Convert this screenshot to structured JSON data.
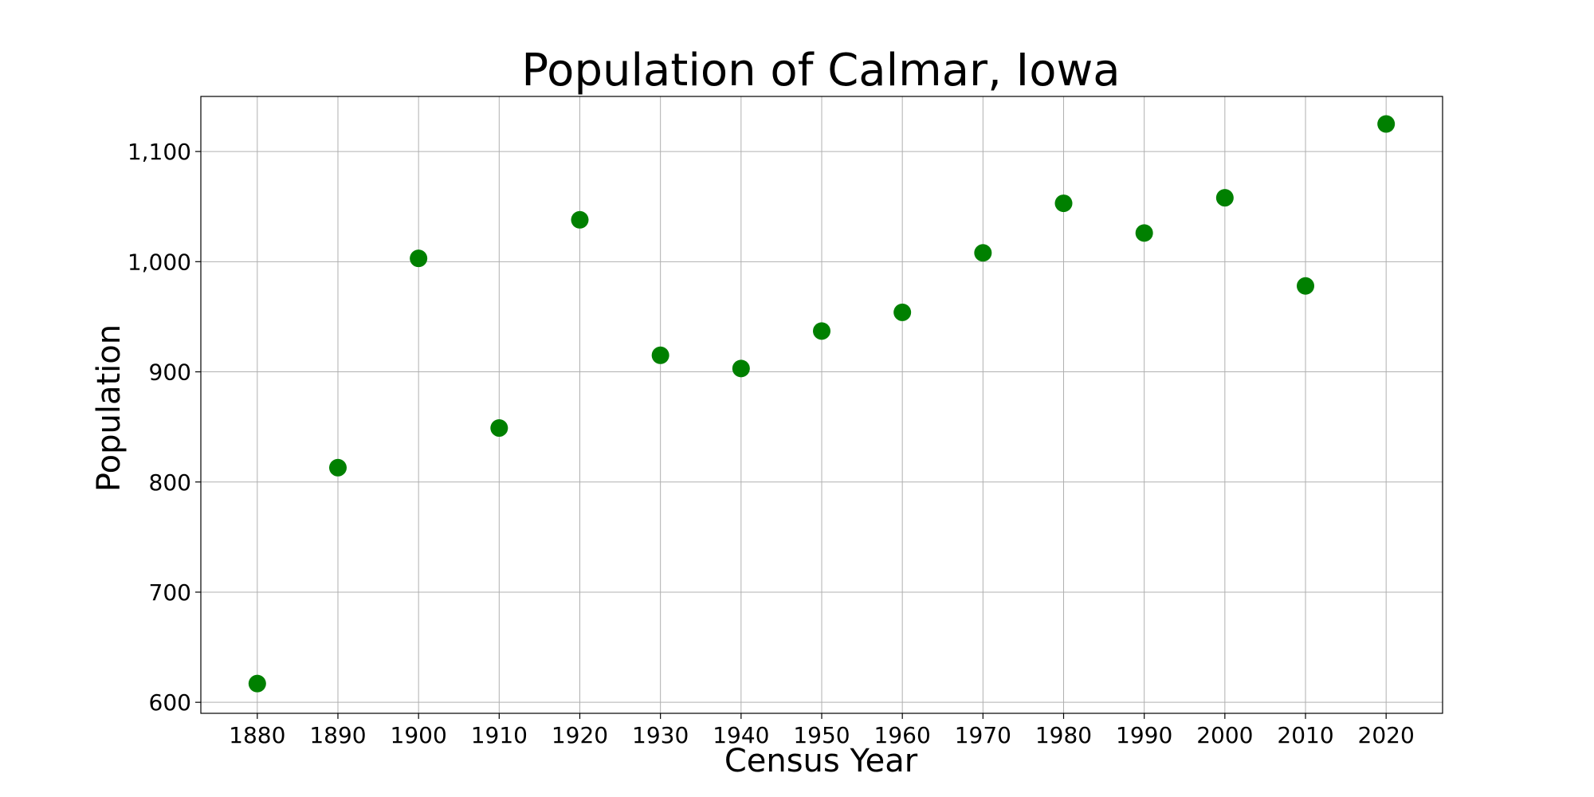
{
  "chart_data": {
    "type": "scatter",
    "title": "Population of Calmar, Iowa",
    "xlabel": "Census Year",
    "ylabel": "Population",
    "x": [
      1880,
      1890,
      1900,
      1910,
      1920,
      1930,
      1940,
      1950,
      1960,
      1970,
      1980,
      1990,
      2000,
      2010,
      2020
    ],
    "y": [
      617,
      813,
      1003,
      849,
      1038,
      915,
      903,
      937,
      954,
      1008,
      1053,
      1026,
      1058,
      978,
      1125
    ],
    "xticks": [
      "1880",
      "1890",
      "1900",
      "1910",
      "1920",
      "1930",
      "1940",
      "1950",
      "1960",
      "1970",
      "1980",
      "1990",
      "2000",
      "2010",
      "2020"
    ],
    "yticks": [
      "600",
      "700",
      "800",
      "900",
      "1,000",
      "1,100"
    ],
    "xlim": [
      1873,
      2027
    ],
    "ylim": [
      590,
      1150
    ],
    "grid": true,
    "marker_color": "#008000"
  }
}
